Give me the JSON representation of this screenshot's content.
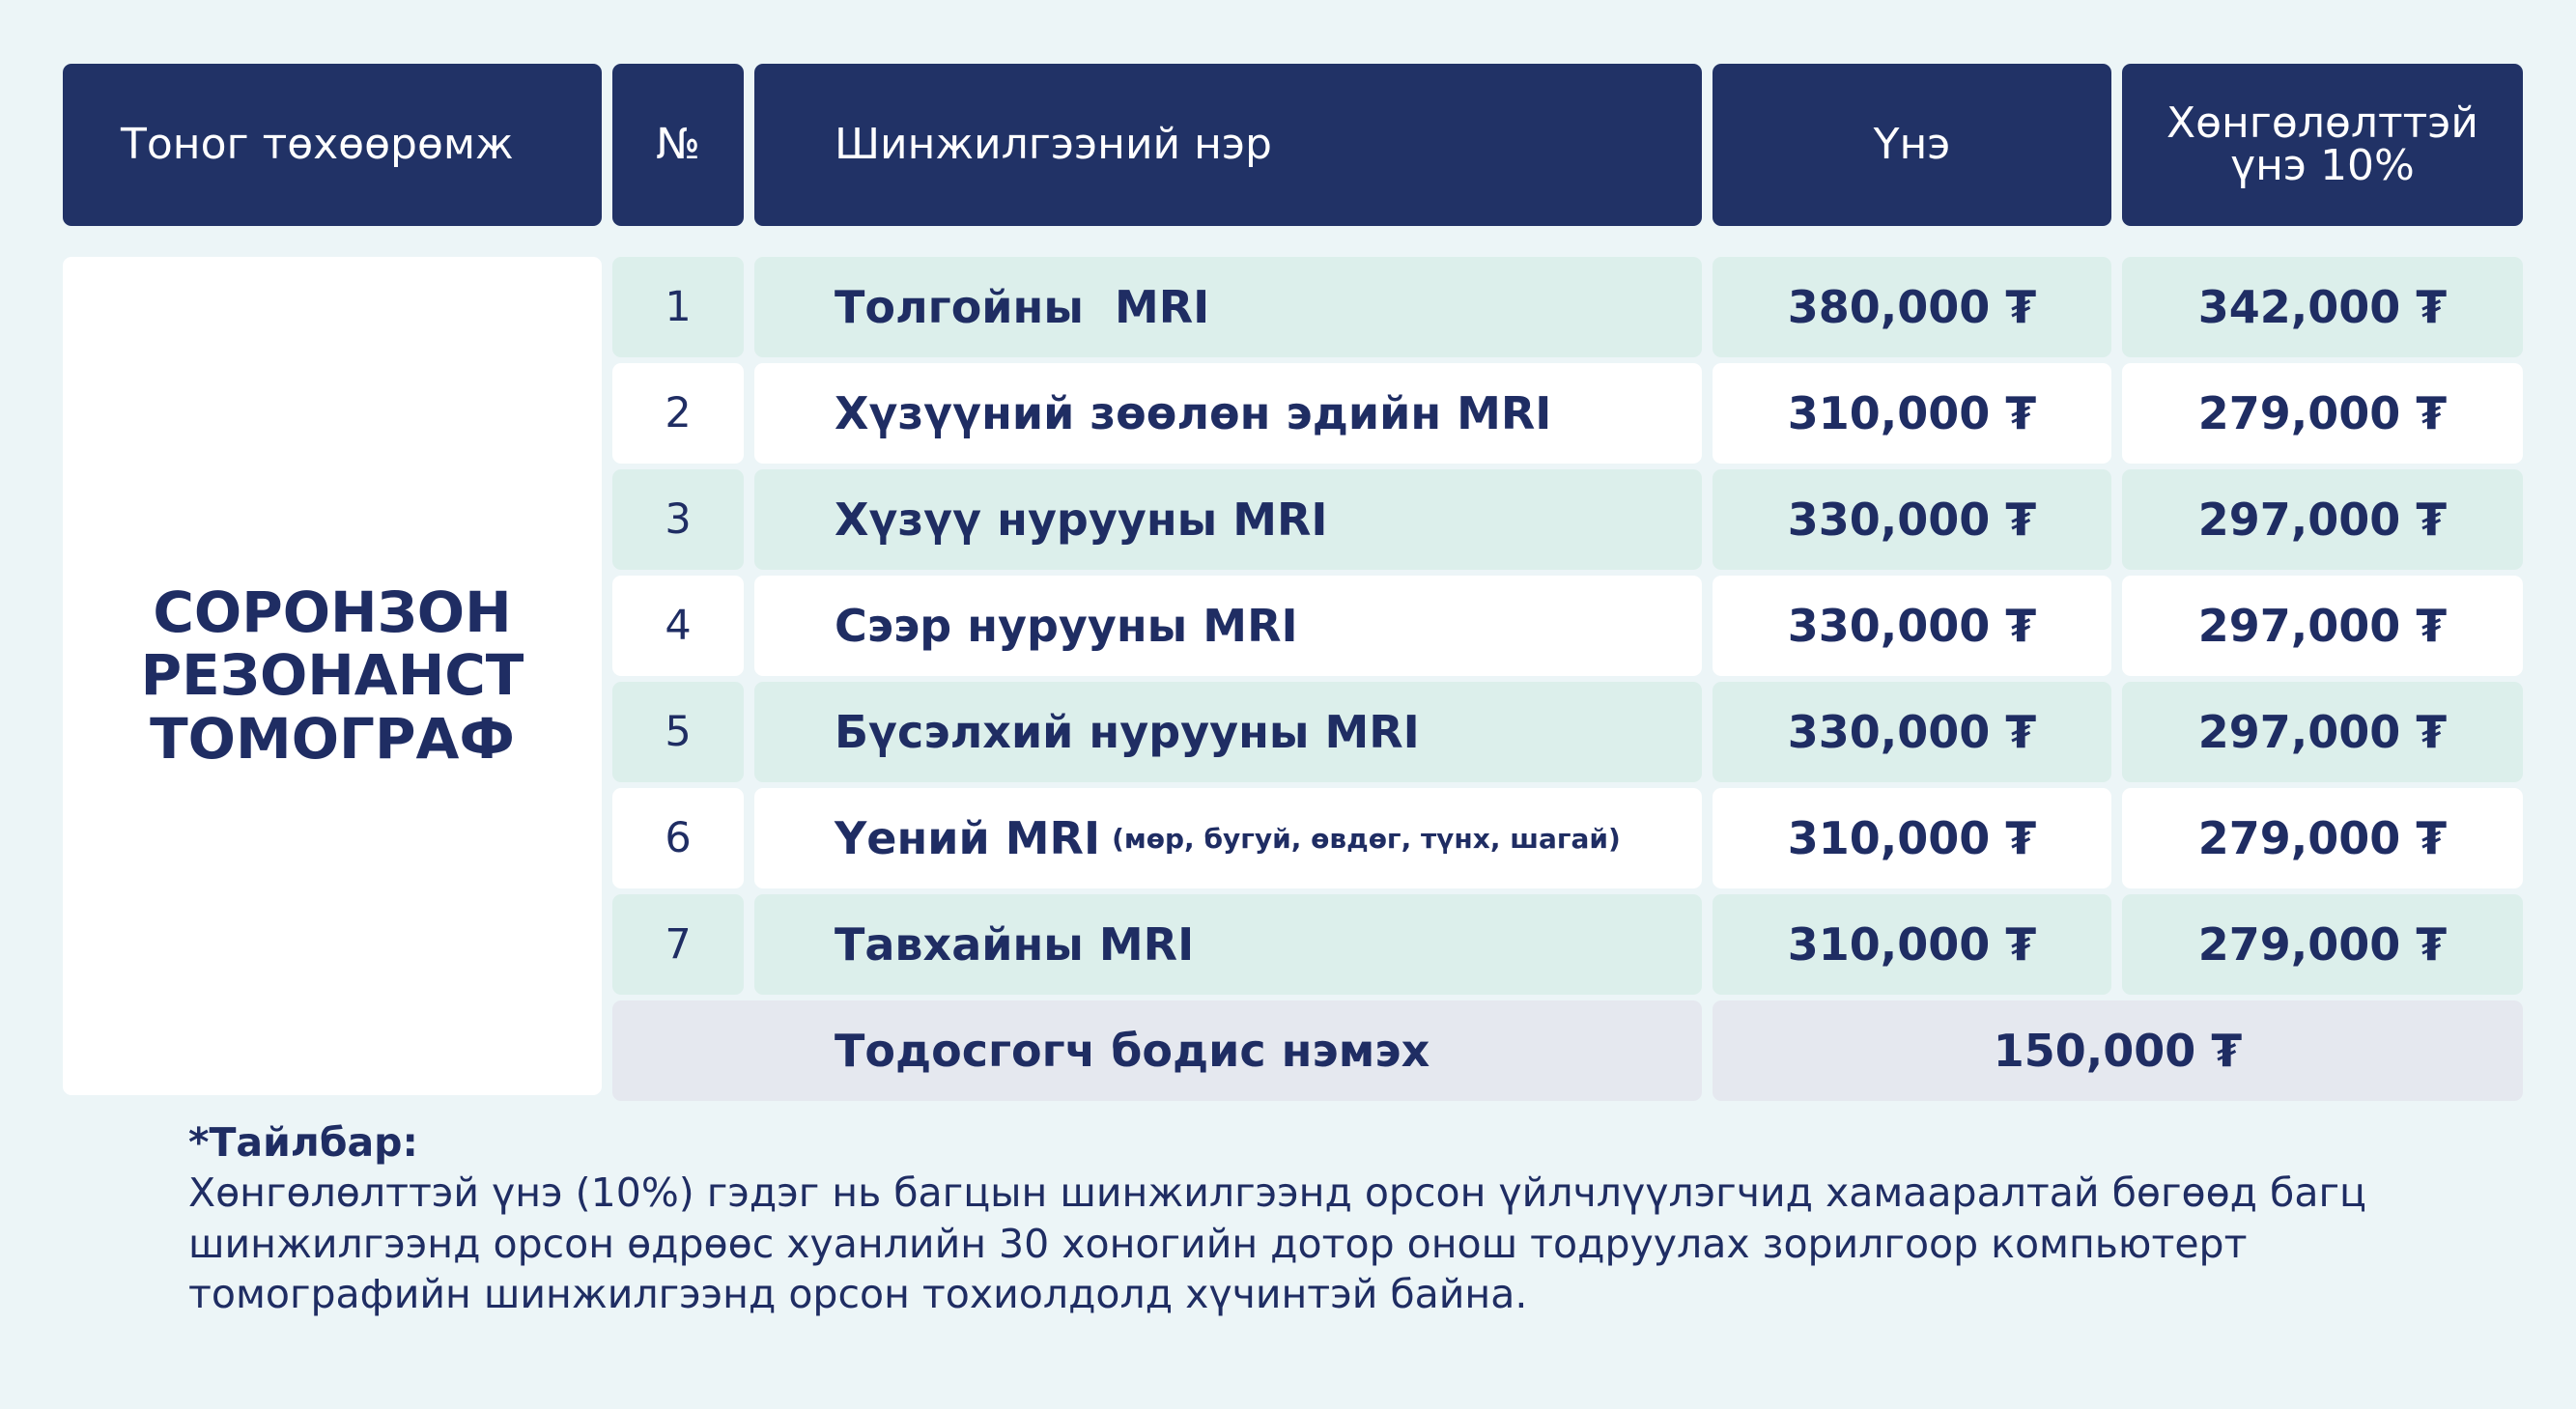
{
  "header": {
    "equipment": "Тоног төхөөрөмж",
    "number": "№",
    "name": "Шинжилгээний нэр",
    "price": "Үнэ",
    "discount": "Хөнгөлөлттэй үнэ 10%"
  },
  "equipment": "СОРОНЗОН РЕЗОНАНСТ ТОМОГРАФ",
  "rows": [
    {
      "no": "1",
      "name": "Толгойны  MRI",
      "note": "",
      "price": "380,000 ₮",
      "discount": "342,000 ₮"
    },
    {
      "no": "2",
      "name": "Хүзүүний зөөлөн эдийн MRI",
      "note": "",
      "price": "310,000 ₮",
      "discount": "279,000 ₮"
    },
    {
      "no": "3",
      "name": "Хүзүү нурууны MRI",
      "note": "",
      "price": "330,000 ₮",
      "discount": "297,000 ₮"
    },
    {
      "no": "4",
      "name": "Сээр нурууны MRI",
      "note": "",
      "price": "330,000 ₮",
      "discount": "297,000 ₮"
    },
    {
      "no": "5",
      "name": "Бүсэлхий нурууны MRI",
      "note": "",
      "price": "330,000 ₮",
      "discount": "297,000 ₮"
    },
    {
      "no": "6",
      "name": "Үений MRI",
      "note": "(мөр, бугуй, өвдөг, түнх, шагай)",
      "price": "310,000 ₮",
      "discount": "279,000 ₮"
    },
    {
      "no": "7",
      "name": "Тавхайны MRI",
      "note": "",
      "price": "310,000 ₮",
      "discount": "279,000 ₮"
    }
  ],
  "contrast": {
    "label": "Тодосгогч бодис нэмэх",
    "price": "150,000 ₮"
  },
  "footnote": {
    "title": "*Тайлбар:",
    "text": "Хөнгөлөлттэй үнэ (10%) гэдэг нь багцын шинжилгээнд орсон үйлчлүүлэгчид хамааралтай бөгөөд багц шинжилгээнд орсон өдрөөс хуанлийн 30 хоногийн дотор онош тодруулах зорилгоор компьютерт томографийн шинжилгээнд орсон тохиолдолд хүчинтэй байна."
  }
}
